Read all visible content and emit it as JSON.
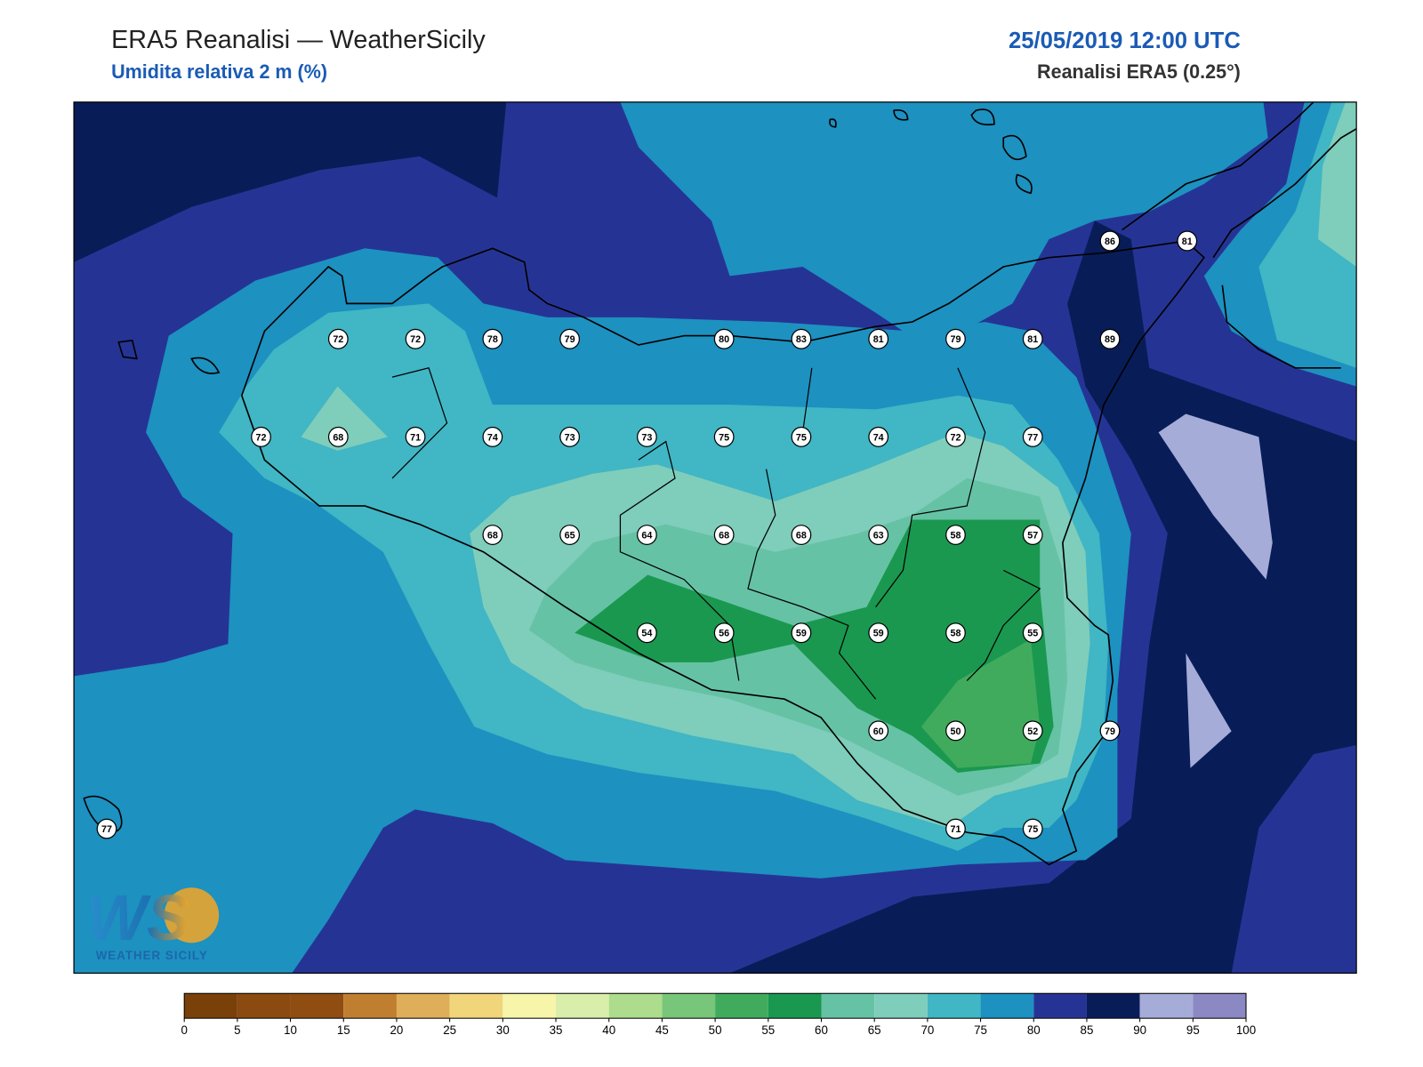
{
  "header": {
    "title": "ERA5 Reanalisi — WeatherSicily",
    "subtitle": "Umidita relativa 2 m (%)",
    "datetime": "25/05/2019 12:00 UTC",
    "source": "Reanalisi ERA5 (0.25°)"
  },
  "stations": {
    "rows": [
      [
        null,
        null,
        null,
        null,
        null,
        null,
        null,
        null,
        null,
        null,
        null,
        null,
        null,
        86,
        81
      ],
      [
        null,
        null,
        null,
        72,
        72,
        78,
        79,
        null,
        80,
        83,
        81,
        79,
        81,
        89,
        null
      ],
      [
        null,
        null,
        72,
        68,
        71,
        74,
        73,
        73,
        75,
        75,
        74,
        72,
        77,
        null,
        null
      ],
      [
        null,
        null,
        null,
        null,
        null,
        68,
        65,
        64,
        68,
        68,
        63,
        58,
        57,
        null,
        null
      ],
      [
        null,
        null,
        null,
        null,
        null,
        null,
        null,
        54,
        56,
        59,
        59,
        58,
        55,
        null,
        null
      ],
      [
        null,
        null,
        null,
        null,
        null,
        null,
        null,
        null,
        null,
        null,
        60,
        50,
        52,
        79,
        null
      ],
      [
        77,
        null,
        null,
        null,
        null,
        null,
        null,
        null,
        null,
        null,
        null,
        71,
        75,
        null,
        null
      ]
    ]
  },
  "colorbar": {
    "ticks": [
      0,
      5,
      10,
      15,
      20,
      25,
      30,
      35,
      40,
      45,
      50,
      55,
      60,
      65,
      70,
      75,
      80,
      85,
      90,
      95,
      100
    ],
    "colors": [
      "#7a400a",
      "#8a4a10",
      "#8f4d12",
      "#c07f30",
      "#dfae5a",
      "#f0d57a",
      "#f6f5aa",
      "#d9eeaa",
      "#acdc8c",
      "#78c679",
      "#41ab5d",
      "#1a9850",
      "#66c2a4",
      "#7fcdbb",
      "#41b6c4",
      "#1d91c0",
      "#253494",
      "#081d58",
      "#a6acd8",
      "#8c88c4"
    ]
  },
  "logo": {
    "mark": "WS",
    "name": "WEATHER SICILY"
  }
}
